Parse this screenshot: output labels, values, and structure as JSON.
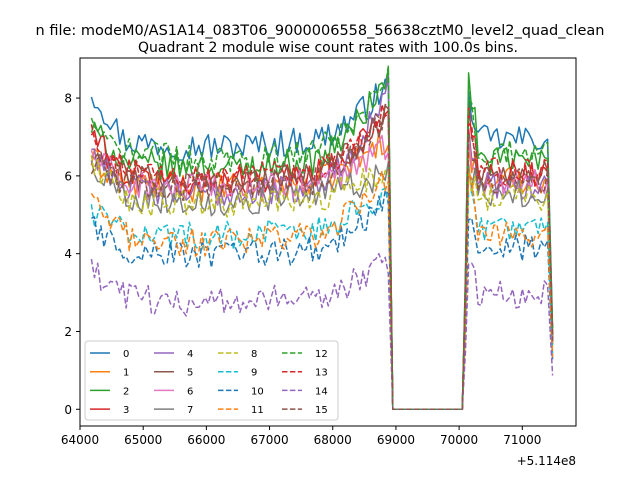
{
  "chart_data": {
    "type": "line",
    "suptitle": "n file: modeM0/AS1A14_083T06_9000006558_56638cztM0_level2_quad_clean",
    "title": "Quadrant 2 module wise count rates with 100.0s bins.",
    "xlabel": "",
    "ylabel": "",
    "x_offset_label": "+5.114e8",
    "xlim": [
      64000,
      71850
    ],
    "ylim": [
      -0.43,
      9.03
    ],
    "x_ticks": [
      64000,
      65000,
      66000,
      67000,
      68000,
      69000,
      70000,
      71000
    ],
    "x_tick_labels": [
      "64000",
      "65000",
      "66000",
      "67000",
      "68000",
      "69000",
      "70000",
      "71000"
    ],
    "y_ticks": [
      0,
      2,
      4,
      6,
      8
    ],
    "y_tick_labels": [
      "0",
      "2",
      "4",
      "6",
      "8"
    ],
    "legend_position": "lower-left",
    "legend_columns": 4,
    "series": [
      {
        "name": "0",
        "color": "#1f77b4",
        "style": "solid",
        "level": 6.9,
        "start": 8.2,
        "bump": 7.9,
        "peak": 8.3
      },
      {
        "name": "1",
        "color": "#ff7f0e",
        "style": "solid",
        "level": 5.85,
        "start": 6.4,
        "bump": 6.5,
        "peak": 7.0
      },
      {
        "name": "2",
        "color": "#2ca02c",
        "style": "solid",
        "level": 6.35,
        "start": 7.2,
        "bump": 8.4,
        "peak": 8.5
      },
      {
        "name": "3",
        "color": "#d62728",
        "style": "solid",
        "level": 6.0,
        "start": 7.1,
        "bump": 7.6,
        "peak": 7.7
      },
      {
        "name": "4",
        "color": "#9467bd",
        "style": "solid",
        "level": 5.7,
        "start": 6.7,
        "bump": 7.0,
        "peak": 8.1
      },
      {
        "name": "5",
        "color": "#8c564b",
        "style": "solid",
        "level": 6.0,
        "start": 6.5,
        "bump": 6.9,
        "peak": 7.6
      },
      {
        "name": "6",
        "color": "#e377c2",
        "style": "solid",
        "level": 5.8,
        "start": 6.6,
        "bump": 6.8,
        "peak": 6.8
      },
      {
        "name": "7",
        "color": "#7f7f7f",
        "style": "solid",
        "level": 5.5,
        "start": 6.3,
        "bump": 6.1,
        "peak": 6.1
      },
      {
        "name": "8",
        "color": "#bcbd22",
        "style": "dashed",
        "level": 5.4,
        "start": 6.4,
        "bump": 6.0,
        "peak": 6.2
      },
      {
        "name": "9",
        "color": "#17becf",
        "style": "dashed",
        "level": 4.6,
        "start": 5.1,
        "bump": 5.4,
        "peak": 5.6
      },
      {
        "name": "10",
        "color": "#1f77b4",
        "style": "dashed",
        "level": 4.1,
        "start": 4.7,
        "bump": 4.7,
        "peak": 5.4
      },
      {
        "name": "11",
        "color": "#ff7f0e",
        "style": "dashed",
        "level": 4.45,
        "start": 5.3,
        "bump": 5.9,
        "peak": 6.0
      },
      {
        "name": "12",
        "color": "#2ca02c",
        "style": "dashed",
        "level": 6.6,
        "start": 7.2,
        "bump": 7.8,
        "peak": 8.5
      },
      {
        "name": "13",
        "color": "#d62728",
        "style": "dashed",
        "level": 6.1,
        "start": 7.0,
        "bump": 7.2,
        "peak": 7.6
      },
      {
        "name": "14",
        "color": "#9467bd",
        "style": "dashed",
        "level": 2.9,
        "start": 3.5,
        "bump": 3.6,
        "peak": 3.8
      },
      {
        "name": "15",
        "color": "#8c564b",
        "style": "dashed",
        "level": 5.85,
        "start": 6.4,
        "bump": 6.9,
        "peak": 7.6
      }
    ],
    "x_start": 64180,
    "x_step": 50,
    "gap_start": 68950,
    "gap_end": 70050,
    "x_end": 71480
  }
}
